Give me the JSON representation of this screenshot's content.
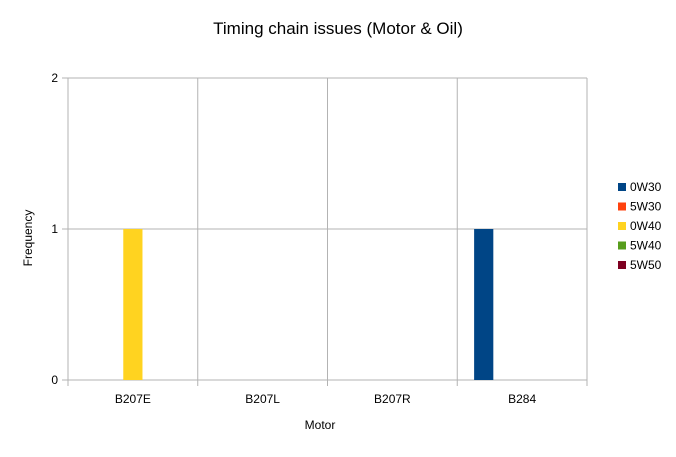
{
  "chart_data": {
    "type": "bar",
    "title": "Timing chain issues (Motor & Oil)",
    "xlabel": "Motor",
    "ylabel": "Frequency",
    "categories": [
      "B207E",
      "B207L",
      "B207R",
      "B284"
    ],
    "series": [
      {
        "name": "0W30",
        "color": "#004586",
        "values": [
          0,
          0,
          0,
          1
        ]
      },
      {
        "name": "5W30",
        "color": "#ff420e",
        "values": [
          0,
          0,
          0,
          0
        ]
      },
      {
        "name": "0W40",
        "color": "#ffd320",
        "values": [
          1,
          0,
          0,
          0
        ]
      },
      {
        "name": "5W40",
        "color": "#579d1c",
        "values": [
          0,
          0,
          0,
          0
        ]
      },
      {
        "name": "5W50",
        "color": "#7e0021",
        "values": [
          0,
          0,
          0,
          0
        ]
      }
    ],
    "ylim": [
      0,
      2
    ],
    "yticks": [
      "0",
      "1",
      "2"
    ],
    "grid": true,
    "legend_position": "right"
  }
}
